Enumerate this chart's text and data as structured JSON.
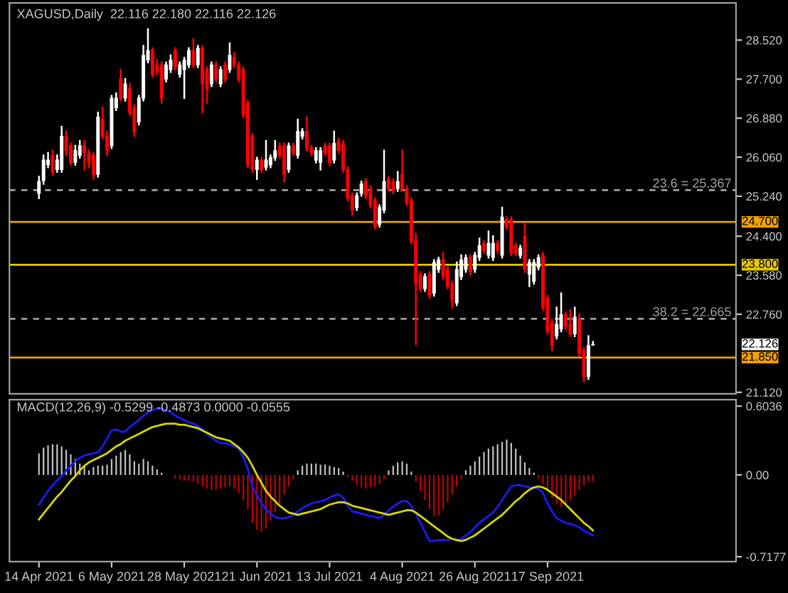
{
  "chart_data": [
    {
      "type": "candlestick",
      "title": "XAGUSD,Daily  22.116 22.180 22.116 22.126",
      "categories": [
        null,
        null,
        null,
        null,
        null,
        null,
        null,
        null,
        null,
        null,
        null,
        null,
        null,
        null,
        null,
        null,
        null,
        null,
        null,
        null,
        null,
        null,
        null,
        null,
        null,
        null,
        null,
        null,
        null,
        null,
        null,
        null,
        null,
        null,
        null,
        null,
        null,
        null,
        null,
        null,
        null,
        null,
        null,
        null,
        null,
        null,
        null,
        null,
        null,
        null,
        null,
        null,
        null,
        null,
        null,
        null,
        null,
        null,
        null,
        null,
        null,
        null,
        null,
        null,
        null,
        null,
        null,
        null,
        null,
        null,
        null,
        null,
        null,
        null,
        null,
        null,
        null,
        null,
        null,
        null,
        null,
        null,
        null,
        null,
        null,
        null,
        null,
        null,
        null,
        null,
        null,
        null,
        null,
        null,
        null,
        null,
        null,
        null,
        null,
        null,
        null,
        null,
        null,
        null,
        null,
        null,
        null,
        null,
        null,
        null,
        null,
        null,
        null,
        null,
        null,
        null,
        null,
        null,
        null,
        null,
        null,
        null,
        null,
        null,
        null,
        null,
        null,
        null,
        null,
        null,
        null,
        null,
        null,
        null,
        null,
        null,
        null,
        null,
        null,
        null,
        null,
        null,
        null,
        null,
        null,
        null,
        null,
        null,
        null,
        null,
        null,
        null,
        null,
        null,
        null,
        null,
        null,
        null,
        null,
        null
      ],
      "annotations": [
        "22.126"
      ],
      "ohlc": [
        null,
        null,
        null,
        null,
        null,
        null,
        [
          25.3,
          25.65,
          25.2,
          25.55
        ],
        [
          25.57,
          26.1,
          25.5,
          26.0
        ],
        [
          25.9,
          26.15,
          25.85,
          26.0
        ],
        [
          26.1,
          26.2,
          25.7,
          25.75
        ],
        [
          25.8,
          26.1,
          25.75,
          26.0
        ],
        [
          25.8,
          26.7,
          25.75,
          26.5
        ],
        [
          26.5,
          26.6,
          26.1,
          26.2
        ],
        [
          26.3,
          26.35,
          25.9,
          25.95
        ],
        [
          25.95,
          26.3,
          25.9,
          26.2
        ],
        [
          26.1,
          26.4,
          26.05,
          26.3
        ],
        [
          26.3,
          26.4,
          25.8,
          26.15
        ],
        [
          26.15,
          26.2,
          25.85,
          25.95
        ],
        [
          26.1,
          26.15,
          25.6,
          25.7
        ],
        [
          25.7,
          27.0,
          25.65,
          26.9
        ],
        [
          26.85,
          27.1,
          26.45,
          26.5
        ],
        [
          26.5,
          26.6,
          26.1,
          26.2
        ],
        [
          26.3,
          27.35,
          26.25,
          27.3
        ],
        [
          27.1,
          27.4,
          27.05,
          27.3
        ],
        [
          27.7,
          27.9,
          27.25,
          27.3
        ],
        [
          27.3,
          27.7,
          27.25,
          27.6
        ],
        [
          27.5,
          27.6,
          26.95,
          27.0
        ],
        [
          27.1,
          27.15,
          26.5,
          26.6
        ],
        [
          26.8,
          27.35,
          26.75,
          27.3
        ],
        [
          27.3,
          28.4,
          27.25,
          28.2
        ],
        [
          28.1,
          28.75,
          28.05,
          28.3
        ],
        [
          28.3,
          28.35,
          27.75,
          27.8
        ],
        [
          28.0,
          28.1,
          27.8,
          27.85
        ],
        [
          28.0,
          28.05,
          27.2,
          27.3
        ],
        [
          27.7,
          28.05,
          27.65,
          28.0
        ],
        [
          27.9,
          28.2,
          27.85,
          28.1
        ],
        [
          28.3,
          28.35,
          27.9,
          27.95
        ],
        [
          27.8,
          28.05,
          27.75,
          28.0
        ],
        [
          27.9,
          28.15,
          27.3,
          28.1
        ],
        [
          28.0,
          28.35,
          27.95,
          28.3
        ],
        [
          28.3,
          28.55,
          27.95,
          28.0
        ],
        [
          28.0,
          28.4,
          27.95,
          28.35
        ],
        [
          28.35,
          28.4,
          27.0,
          27.6
        ],
        [
          27.9,
          27.95,
          27.2,
          27.5
        ],
        [
          27.6,
          28.05,
          27.55,
          28.0
        ],
        [
          28.0,
          28.05,
          27.65,
          27.7
        ],
        [
          27.6,
          27.95,
          27.55,
          27.9
        ],
        [
          28.0,
          28.05,
          27.65,
          27.7
        ],
        [
          27.9,
          28.45,
          27.85,
          28.2
        ],
        [
          28.15,
          28.25,
          27.95,
          28.0
        ],
        [
          28.0,
          28.05,
          27.65,
          27.7
        ],
        [
          27.9,
          27.95,
          26.9,
          26.95
        ],
        [
          27.2,
          27.25,
          25.85,
          25.9
        ],
        [
          26.5,
          26.55,
          25.75,
          25.8
        ],
        [
          25.8,
          26.05,
          25.6,
          26.0
        ],
        [
          26.0,
          26.05,
          25.75,
          25.8
        ],
        [
          25.85,
          26.4,
          25.8,
          26.0
        ],
        [
          25.9,
          26.1,
          25.85,
          26.05
        ],
        [
          26.05,
          26.4,
          26.0,
          26.2
        ],
        [
          26.3,
          26.35,
          26.05,
          26.1
        ],
        [
          26.3,
          26.35,
          25.55,
          25.7
        ],
        [
          25.8,
          26.35,
          25.75,
          26.3
        ],
        [
          26.3,
          26.35,
          26.1,
          26.15
        ],
        [
          26.1,
          26.85,
          26.05,
          26.6
        ],
        [
          26.5,
          26.65,
          26.45,
          26.6
        ],
        [
          26.6,
          26.9,
          26.2,
          26.25
        ],
        [
          26.25,
          26.3,
          26.1,
          26.15
        ],
        [
          26.0,
          26.25,
          25.95,
          26.2
        ],
        [
          25.95,
          26.25,
          25.8,
          26.2
        ],
        [
          26.3,
          26.35,
          26.1,
          26.15
        ],
        [
          26.3,
          26.35,
          25.9,
          25.95
        ],
        [
          26.0,
          26.6,
          25.95,
          26.35
        ],
        [
          26.4,
          26.45,
          26.15,
          26.2
        ],
        [
          26.35,
          26.4,
          25.75,
          25.8
        ],
        [
          25.8,
          25.85,
          25.15,
          25.2
        ],
        [
          25.25,
          25.3,
          24.85,
          24.95
        ],
        [
          25.0,
          25.3,
          24.95,
          25.25
        ],
        [
          25.3,
          25.55,
          25.25,
          25.5
        ],
        [
          25.55,
          25.6,
          25.2,
          25.25
        ],
        [
          25.4,
          25.45,
          25.0,
          25.05
        ],
        [
          25.15,
          25.2,
          24.55,
          24.6
        ],
        [
          24.65,
          25.05,
          24.6,
          25.0
        ],
        [
          24.95,
          26.2,
          24.9,
          25.55
        ],
        [
          25.6,
          25.65,
          25.35,
          25.4
        ],
        [
          25.55,
          25.6,
          25.3,
          25.35
        ],
        [
          25.4,
          25.75,
          25.35,
          25.55
        ],
        [
          25.7,
          26.2,
          25.35,
          25.4
        ],
        [
          25.4,
          25.45,
          25.05,
          25.1
        ],
        [
          25.15,
          25.2,
          24.25,
          24.3
        ],
        [
          24.3,
          24.45,
          22.13,
          23.4
        ],
        [
          23.6,
          23.65,
          23.25,
          23.3
        ],
        [
          23.3,
          23.6,
          23.25,
          23.55
        ],
        [
          23.6,
          23.65,
          23.1,
          23.15
        ],
        [
          23.2,
          23.9,
          23.15,
          23.85
        ],
        [
          23.7,
          23.95,
          23.65,
          23.9
        ],
        [
          23.9,
          24.05,
          23.5,
          23.55
        ],
        [
          23.7,
          23.75,
          23.3,
          23.35
        ],
        [
          23.4,
          23.45,
          22.9,
          23.05
        ],
        [
          23.0,
          23.85,
          22.95,
          23.7
        ],
        [
          23.55,
          24.0,
          23.5,
          23.9
        ],
        [
          23.7,
          24.0,
          23.65,
          23.95
        ],
        [
          23.95,
          24.0,
          23.6,
          23.65
        ],
        [
          23.7,
          24.05,
          23.65,
          24.0
        ],
        [
          23.95,
          24.35,
          23.9,
          24.2
        ],
        [
          24.25,
          24.3,
          24.05,
          24.1
        ],
        [
          24.0,
          24.5,
          23.95,
          24.25
        ],
        [
          23.95,
          24.4,
          23.9,
          24.25
        ],
        [
          24.25,
          24.3,
          24.05,
          24.1
        ],
        [
          24.0,
          25.0,
          23.95,
          24.8
        ],
        [
          24.75,
          24.8,
          24.55,
          24.6
        ],
        [
          24.75,
          24.8,
          24.0,
          24.05
        ],
        [
          24.2,
          24.25,
          24.0,
          24.05
        ],
        [
          24.0,
          24.2,
          23.95,
          24.15
        ],
        [
          24.4,
          24.65,
          23.65,
          23.7
        ],
        [
          23.6,
          23.9,
          23.35,
          23.85
        ],
        [
          23.45,
          23.9,
          23.4,
          23.85
        ],
        [
          23.75,
          24.0,
          23.7,
          23.95
        ],
        [
          24.0,
          24.05,
          22.85,
          22.9
        ],
        [
          23.1,
          23.15,
          22.35,
          22.4
        ],
        [
          22.6,
          22.65,
          22.0,
          22.1
        ],
        [
          22.3,
          22.9,
          22.25,
          22.55
        ],
        [
          22.45,
          23.2,
          22.4,
          22.75
        ],
        [
          22.75,
          22.8,
          22.45,
          22.5
        ],
        [
          22.55,
          22.85,
          22.3,
          22.35
        ],
        [
          22.35,
          22.9,
          22.3,
          22.7
        ],
        [
          22.65,
          22.75,
          21.9,
          21.95
        ],
        [
          22.0,
          22.05,
          21.35,
          21.45
        ],
        [
          21.45,
          22.3,
          21.4,
          22.1
        ],
        [
          22.116,
          22.18,
          22.116,
          22.126
        ],
        null,
        null,
        null,
        null,
        null,
        null,
        null,
        null,
        null,
        null,
        null,
        null,
        null,
        null,
        null,
        null,
        null,
        null,
        null,
        null,
        null,
        null,
        null,
        null,
        null,
        null,
        null,
        null,
        null,
        null,
        null
      ],
      "ylim": [
        21.09,
        29.3
      ],
      "yticks": [
        {
          "value": 28.52,
          "label": "28.520"
        },
        {
          "value": 27.7,
          "label": "27.700"
        },
        {
          "value": 26.88,
          "label": "26.880"
        },
        {
          "value": 26.06,
          "label": "26.060"
        },
        {
          "value": 25.24,
          "label": "25.240"
        },
        {
          "value": 24.4,
          "label": "24.400"
        },
        {
          "value": 23.58,
          "label": "23.580"
        },
        {
          "value": 22.76,
          "label": "22.760"
        },
        {
          "value": 21.12,
          "label": "21.120"
        }
      ],
      "ref_lines": [
        {
          "axis": "y",
          "value": 25.367,
          "label": "23.6 = 25.367",
          "color": "#a0a0a0",
          "line_style": "dashed"
        },
        {
          "axis": "y",
          "value": 22.665,
          "label": "38.2 = 22.665",
          "color": "#a0a0a0",
          "line_style": "dashed"
        },
        {
          "axis": "y",
          "value": 24.7,
          "label": "24.700",
          "color": "#f0a000",
          "line_style": "solid"
        },
        {
          "axis": "y",
          "value": 23.8,
          "label": "23.800",
          "color": "#e8c800",
          "line_style": "solid"
        },
        {
          "axis": "y",
          "value": 21.85,
          "label": "21.850",
          "color": "#f0a000",
          "line_style": "solid"
        }
      ],
      "tick_labels": "y"
    },
    {
      "type": "bar",
      "title": "MACD(12,26,9) -0.5299 -0.4873 0.0000 -0.0555",
      "categories": [
        null,
        null,
        null,
        null,
        null,
        null,
        "14 Apr 2021",
        null,
        null,
        null,
        null,
        null,
        null,
        null,
        null,
        null,
        null,
        null,
        null,
        null,
        null,
        null,
        "6 May 2021",
        null,
        null,
        null,
        null,
        null,
        null,
        null,
        null,
        null,
        null,
        null,
        null,
        null,
        null,
        null,
        "28 May 2021",
        null,
        null,
        null,
        null,
        null,
        null,
        null,
        null,
        null,
        null,
        null,
        null,
        null,
        null,
        null,
        "21 Jun 2021",
        null,
        null,
        null,
        null,
        null,
        null,
        null,
        null,
        null,
        null,
        null,
        null,
        null,
        null,
        null,
        "13 Jul 2021",
        null,
        null,
        null,
        null,
        null,
        null,
        null,
        null,
        null,
        null,
        null,
        null,
        null,
        null,
        null,
        "4 Aug 2021",
        null,
        null,
        null,
        null,
        null,
        null,
        null,
        null,
        null,
        null,
        null,
        null,
        null,
        null,
        null,
        "26 Aug 2021",
        null,
        null,
        null,
        null,
        null,
        null,
        null,
        null,
        null,
        null,
        null,
        null,
        null,
        null,
        null,
        "17 Sep 2021",
        null,
        null,
        null,
        null,
        null,
        null,
        null,
        null,
        null,
        null,
        null,
        null,
        null,
        null,
        null,
        null,
        null,
        null,
        null,
        null,
        null,
        null,
        null,
        null,
        null,
        null,
        null,
        null,
        null,
        null,
        null,
        null,
        null,
        null,
        null,
        null,
        null,
        null,
        null,
        null,
        null
      ],
      "series": [
        {
          "type": "bar",
          "color": "#c0c0c0",
          "values": [
            null,
            null,
            null,
            null,
            null,
            null,
            0.19,
            0.24,
            0.26,
            0.27,
            0.27,
            0.25,
            0.22,
            0.18,
            0.14,
            0.1,
            0.08,
            0.04,
            0.07,
            0.08,
            0.08,
            0.09,
            0.14,
            0.17,
            0.2,
            0.22,
            0.18,
            0.12,
            0.1,
            0.14,
            0.12,
            0.08,
            0.05,
            0.02,
            null,
            null,
            null,
            null,
            null,
            null,
            null,
            null,
            null,
            null,
            null,
            null,
            null,
            null,
            null,
            null,
            null,
            null,
            null,
            null,
            null,
            null,
            null,
            null,
            null,
            null,
            null,
            null,
            null,
            0.04,
            0.08,
            0.1,
            0.1,
            0.1,
            0.09,
            0.09,
            0.08,
            0.07,
            0.06,
            0.03,
            null,
            null,
            null,
            null,
            null,
            null,
            null,
            null,
            null,
            0.04,
            0.08,
            0.11,
            0.12,
            0.1,
            0.03,
            null,
            null,
            null,
            null,
            null,
            null,
            null,
            null,
            null,
            null,
            null,
            0.04,
            0.08,
            0.12,
            0.16,
            0.2,
            0.23,
            0.25,
            0.27,
            0.29,
            0.31,
            0.28,
            0.23,
            0.17,
            0.11,
            0.06,
            0.02,
            null,
            null,
            null,
            null,
            null,
            null,
            null,
            null,
            null,
            null,
            null,
            null,
            null,
            null,
            null,
            null,
            null,
            null,
            null,
            null,
            null,
            null,
            null,
            null,
            null,
            null,
            null,
            null,
            null,
            null,
            null,
            null,
            null,
            null,
            null,
            null,
            null,
            null,
            null,
            null,
            null,
            null,
            null,
            null
          ]
        },
        {
          "type": "bar",
          "color": "#c00000",
          "values": [
            null,
            null,
            null,
            null,
            null,
            null,
            null,
            null,
            null,
            null,
            null,
            null,
            null,
            null,
            null,
            null,
            null,
            null,
            null,
            null,
            null,
            null,
            null,
            null,
            null,
            null,
            null,
            null,
            null,
            null,
            null,
            null,
            null,
            null,
            null,
            null,
            -0.03,
            -0.04,
            -0.05,
            -0.05,
            -0.06,
            -0.08,
            -0.1,
            -0.12,
            -0.13,
            -0.13,
            -0.12,
            -0.11,
            -0.1,
            -0.12,
            -0.16,
            -0.22,
            -0.3,
            -0.42,
            -0.48,
            -0.5,
            -0.47,
            -0.4,
            -0.33,
            -0.25,
            -0.17,
            -0.1,
            -0.04,
            null,
            null,
            null,
            null,
            null,
            null,
            null,
            null,
            null,
            null,
            null,
            -0.02,
            -0.05,
            -0.09,
            -0.11,
            -0.12,
            -0.11,
            -0.1,
            -0.08,
            -0.04,
            null,
            null,
            null,
            null,
            null,
            null,
            -0.06,
            -0.14,
            -0.22,
            -0.3,
            -0.36,
            -0.35,
            -0.3,
            -0.24,
            -0.17,
            -0.1,
            -0.04,
            null,
            null,
            null,
            null,
            null,
            null,
            null,
            null,
            null,
            null,
            null,
            null,
            null,
            null,
            null,
            null,
            -0.03,
            -0.08,
            -0.14,
            -0.2,
            -0.25,
            -0.28,
            -0.26,
            -0.22,
            -0.18,
            -0.13,
            -0.09,
            -0.06,
            -0.0555,
            null,
            null,
            null,
            null,
            null,
            null,
            null,
            null,
            null,
            null,
            null,
            null,
            null,
            null,
            null,
            null,
            null,
            null,
            null,
            null,
            null,
            null,
            null,
            null,
            null,
            null,
            null,
            null,
            null,
            null,
            null
          ]
        },
        {
          "type": "line",
          "color": "#1a1aff",
          "values": [
            null,
            null,
            null,
            null,
            null,
            null,
            -0.26,
            -0.2,
            -0.14,
            -0.09,
            -0.05,
            -0.01,
            0.04,
            0.08,
            0.12,
            0.15,
            0.17,
            0.18,
            0.19,
            0.2,
            0.25,
            0.32,
            0.39,
            0.4,
            0.38,
            0.38,
            0.42,
            0.45,
            0.48,
            0.52,
            0.55,
            0.57,
            0.58,
            0.58,
            0.57,
            0.55,
            0.52,
            0.5,
            0.48,
            0.46,
            0.45,
            0.43,
            0.4,
            0.36,
            0.33,
            0.3,
            0.28,
            0.28,
            0.27,
            0.25,
            0.23,
            0.16,
            0.05,
            -0.1,
            -0.18,
            -0.25,
            -0.3,
            -0.34,
            -0.37,
            -0.38,
            -0.38,
            -0.37,
            -0.35,
            -0.32,
            -0.29,
            -0.27,
            -0.25,
            -0.24,
            -0.23,
            -0.22,
            -0.2,
            -0.18,
            -0.17,
            -0.2,
            -0.27,
            -0.32,
            -0.33,
            -0.34,
            -0.35,
            -0.36,
            -0.37,
            -0.38,
            -0.35,
            -0.31,
            -0.28,
            -0.25,
            -0.23,
            -0.23,
            -0.27,
            -0.34,
            -0.42,
            -0.5,
            -0.58,
            -0.58,
            -0.57,
            -0.57,
            -0.57,
            -0.56,
            -0.58,
            -0.56,
            -0.53,
            -0.5,
            -0.46,
            -0.42,
            -0.39,
            -0.36,
            -0.33,
            -0.28,
            -0.22,
            -0.16,
            -0.1,
            -0.09,
            -0.09,
            -0.1,
            -0.11,
            -0.11,
            -0.12,
            -0.16,
            -0.25,
            -0.32,
            -0.38,
            -0.4,
            -0.42,
            -0.43,
            -0.44,
            -0.46,
            -0.49,
            -0.51,
            -0.5299,
            null,
            null,
            null,
            null,
            null,
            null,
            null,
            null,
            null,
            null,
            null,
            null,
            null,
            null,
            null,
            null,
            null,
            null,
            null,
            null,
            null,
            null,
            null,
            null,
            null,
            null,
            null,
            null,
            null,
            null,
            null
          ]
        },
        {
          "type": "line",
          "color": "#d8d800",
          "values": [
            null,
            null,
            null,
            null,
            null,
            null,
            -0.39,
            -0.34,
            -0.29,
            -0.24,
            -0.19,
            -0.15,
            -0.1,
            -0.05,
            -0.01,
            0.04,
            0.08,
            0.11,
            0.13,
            0.15,
            0.17,
            0.19,
            0.22,
            0.25,
            0.27,
            0.3,
            0.32,
            0.34,
            0.36,
            0.38,
            0.4,
            0.42,
            0.43,
            0.44,
            0.45,
            0.45,
            0.45,
            0.44,
            0.44,
            0.43,
            0.42,
            0.41,
            0.39,
            0.37,
            0.35,
            0.33,
            0.32,
            0.31,
            0.3,
            0.27,
            0.24,
            0.2,
            0.15,
            0.08,
            0.0,
            -0.07,
            -0.14,
            -0.19,
            -0.23,
            -0.27,
            -0.3,
            -0.33,
            -0.34,
            -0.35,
            -0.34,
            -0.33,
            -0.32,
            -0.31,
            -0.3,
            -0.28,
            -0.26,
            -0.25,
            -0.24,
            -0.24,
            -0.25,
            -0.27,
            -0.28,
            -0.29,
            -0.3,
            -0.31,
            -0.32,
            -0.33,
            -0.34,
            -0.35,
            -0.34,
            -0.33,
            -0.32,
            -0.31,
            -0.31,
            -0.33,
            -0.36,
            -0.39,
            -0.42,
            -0.45,
            -0.48,
            -0.51,
            -0.54,
            -0.56,
            -0.57,
            -0.58,
            -0.57,
            -0.55,
            -0.53,
            -0.5,
            -0.47,
            -0.44,
            -0.41,
            -0.38,
            -0.35,
            -0.31,
            -0.27,
            -0.23,
            -0.2,
            -0.16,
            -0.13,
            -0.11,
            -0.1,
            -0.11,
            -0.13,
            -0.16,
            -0.19,
            -0.22,
            -0.26,
            -0.3,
            -0.34,
            -0.38,
            -0.42,
            -0.45,
            -0.4873,
            null,
            null,
            null,
            null,
            null,
            null,
            null,
            null,
            null,
            null,
            null,
            null,
            null,
            null,
            null,
            null,
            null,
            null,
            null,
            null,
            null,
            null,
            null,
            null,
            null,
            null,
            null,
            null,
            null,
            null,
            null
          ]
        }
      ],
      "ylim": [
        -0.76,
        0.66
      ],
      "yticks": [
        {
          "value": 0.6036,
          "label": "0.6036"
        },
        {
          "value": 0,
          "label": "0.00"
        },
        {
          "value": -0.7177,
          "label": "-0.7177"
        }
      ]
    }
  ]
}
